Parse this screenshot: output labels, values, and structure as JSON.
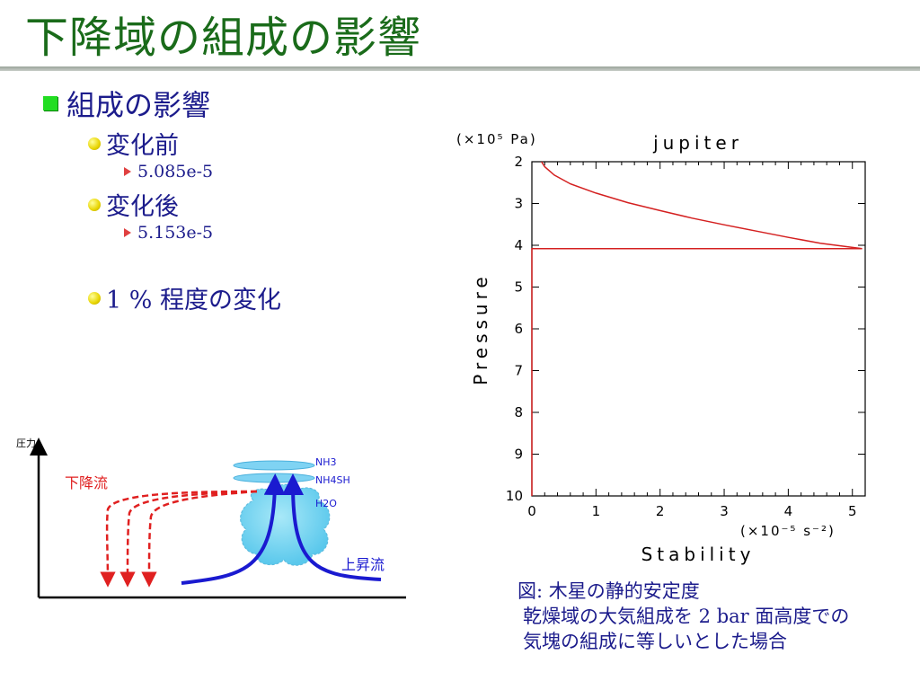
{
  "title": "下降域の組成の影響",
  "bullets": {
    "main": "組成の影響",
    "before_label": "変化前",
    "before_value": "5.085e-5",
    "after_label": "変化後",
    "after_value": "5.153e-5",
    "change": "1 % 程度の変化"
  },
  "diagram": {
    "pressure_axis": "圧力",
    "downdraft": "下降流",
    "updraft": "上昇流",
    "layer_nh3": "NH3",
    "layer_nh4sh": "NH4SH",
    "layer_h2o": "H2O"
  },
  "chart_data": {
    "type": "line",
    "title": "jupiter",
    "xlabel": "Stability",
    "ylabel": "Pressure",
    "x_unit": "(×10⁻⁵ s⁻²)",
    "y_unit": "(×10⁵ Pa)",
    "xlim": [
      0,
      5.2
    ],
    "ylim": [
      2,
      10
    ],
    "y_inverted": true,
    "x_ticks": [
      "0",
      "1",
      "2",
      "3",
      "4",
      "5"
    ],
    "y_ticks": [
      "2",
      "3",
      "4",
      "5",
      "6",
      "7",
      "8",
      "9",
      "10"
    ],
    "series_color": "#d42020",
    "series": [
      {
        "x": [
          0.15,
          0.2,
          0.35,
          0.6,
          1.0,
          1.5,
          2.0,
          2.5,
          3.0,
          3.5,
          4.0,
          4.5,
          5.153,
          0.0,
          0.0
        ],
        "y": [
          2.0,
          2.12,
          2.32,
          2.53,
          2.75,
          2.98,
          3.17,
          3.35,
          3.51,
          3.66,
          3.81,
          3.95,
          4.08,
          4.08,
          10.0
        ]
      }
    ]
  },
  "caption": {
    "line1": "図: 木星の静的安定度",
    "line2": "乾燥域の大気組成を 2 bar 面高度での",
    "line3": "気塊の組成に等しいとした場合"
  }
}
